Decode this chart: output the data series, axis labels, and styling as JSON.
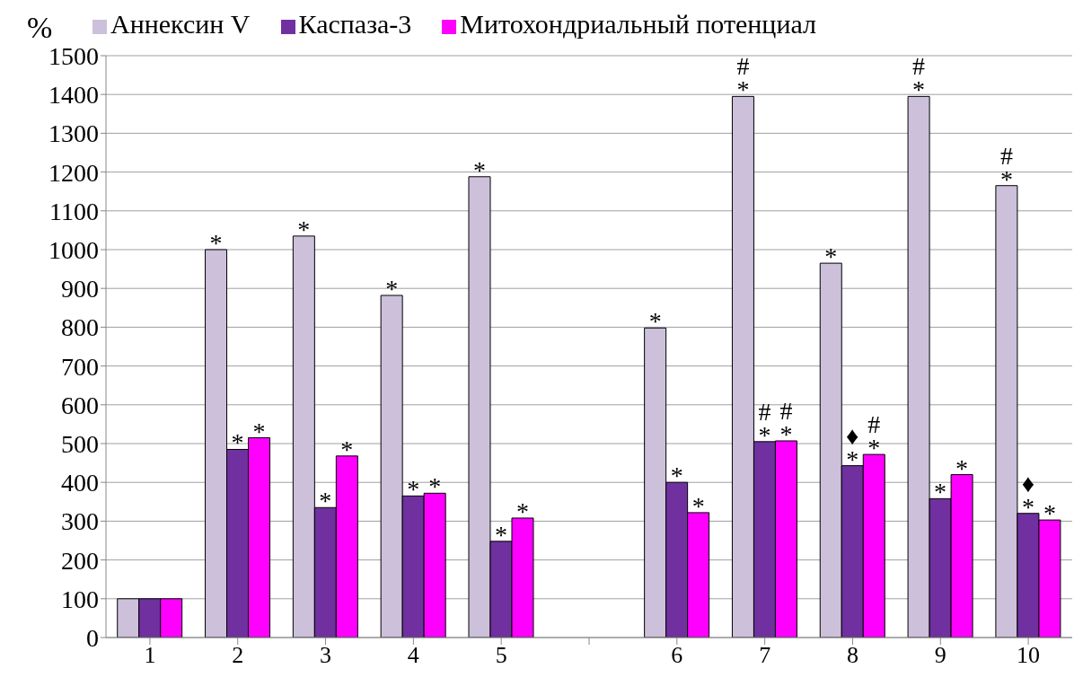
{
  "chart_data": {
    "type": "bar",
    "ylabel": "%",
    "categories": [
      "1",
      "2",
      "3",
      "4",
      "5",
      null,
      "6",
      "7",
      "8",
      "9",
      "10"
    ],
    "series": [
      {
        "name": "Аннексин V",
        "color": "#ccc0da",
        "values": [
          100,
          1000,
          1035,
          882,
          1188,
          null,
          798,
          1395,
          965,
          1395,
          1165
        ]
      },
      {
        "name": "Каспаза-3",
        "color": "#7030a0",
        "values": [
          100,
          485,
          335,
          365,
          248,
          null,
          400,
          505,
          443,
          358,
          320
        ]
      },
      {
        "name": "Митохондриальный потенциал",
        "color": "#ff00ff",
        "values": [
          100,
          515,
          468,
          372,
          308,
          null,
          322,
          507,
          472,
          420,
          303
        ]
      }
    ],
    "ylim": [
      0,
      1500
    ],
    "yticks": [
      0,
      100,
      200,
      300,
      400,
      500,
      600,
      700,
      800,
      900,
      1000,
      1100,
      1200,
      1300,
      1400,
      1500
    ],
    "grid": "y",
    "legend": "top",
    "annotations": [
      "*",
      "*",
      "*",
      "*",
      "*",
      "*",
      "*",
      "*",
      "*",
      "*",
      "*",
      "*",
      "*",
      "*",
      "*",
      "#\n*",
      "#\n*",
      "#\n*",
      "*",
      "♦\n*",
      "#\n*",
      "#\n*",
      "*",
      "*",
      "#\n*",
      "♦\n*",
      "*"
    ]
  }
}
